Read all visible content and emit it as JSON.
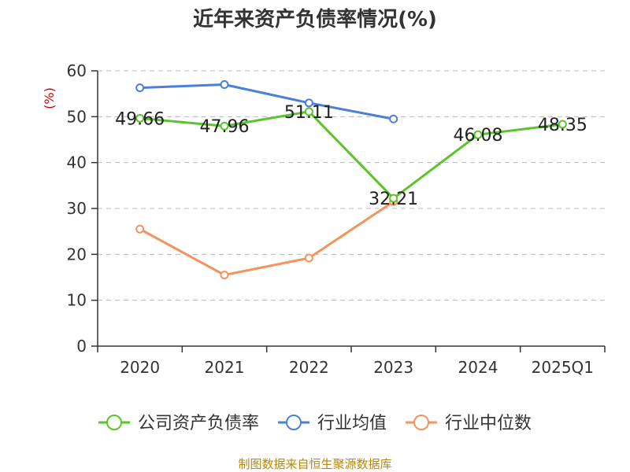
{
  "chart_data": {
    "type": "line",
    "title": "近年来资产负债率情况(%)",
    "ylabel": "(%)",
    "xlabel": "",
    "categories": [
      "2020",
      "2021",
      "2022",
      "2023",
      "2024",
      "2025Q1"
    ],
    "ylim": [
      0,
      60
    ],
    "yticks": [
      0,
      10,
      20,
      30,
      40,
      50,
      60
    ],
    "grid": true,
    "legend_position": "bottom",
    "series": [
      {
        "name": "公司资产负债率",
        "color": "#5bc42a",
        "values": [
          49.66,
          47.96,
          51.11,
          32.21,
          46.08,
          48.35
        ],
        "labels": [
          "49.66",
          "47.96",
          "51.11",
          "32.21",
          "46.08",
          "48.35"
        ]
      },
      {
        "name": "行业均值",
        "color": "#4a7fdc",
        "values": [
          56.3,
          57.0,
          53.0,
          49.5,
          null,
          null
        ]
      },
      {
        "name": "行业中位数",
        "color": "#f5925e",
        "values": [
          25.5,
          15.5,
          19.2,
          31.5,
          null,
          null
        ]
      }
    ]
  },
  "source": "制图数据来自恒生聚源数据库"
}
